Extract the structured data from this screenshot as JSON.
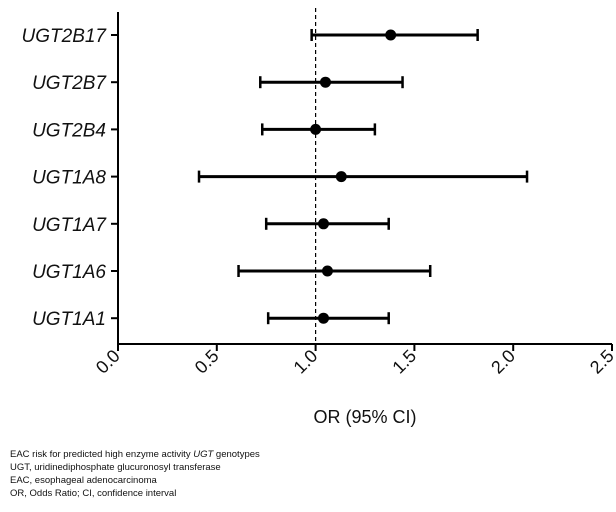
{
  "chart_data": {
    "type": "forest",
    "xlabel": "OR (95% CI)",
    "xlim": [
      0.0,
      2.5
    ],
    "xticks": [
      "0.0",
      "0.5",
      "1.0",
      "1.5",
      "2.0",
      "2.5"
    ],
    "reference_line": 1.0,
    "rows": [
      {
        "label": "UGT2B17",
        "or": 1.38,
        "low": 0.98,
        "high": 1.82
      },
      {
        "label": "UGT2B7",
        "or": 1.05,
        "low": 0.72,
        "high": 1.44
      },
      {
        "label": "UGT2B4",
        "or": 1.0,
        "low": 0.73,
        "high": 1.3
      },
      {
        "label": "UGT1A8",
        "or": 1.13,
        "low": 0.41,
        "high": 2.07
      },
      {
        "label": "UGT1A7",
        "or": 1.04,
        "low": 0.75,
        "high": 1.37
      },
      {
        "label": "UGT1A6",
        "or": 1.06,
        "low": 0.61,
        "high": 1.58
      },
      {
        "label": "UGT1A1",
        "or": 1.04,
        "low": 0.76,
        "high": 1.37
      }
    ]
  },
  "footnotes": [
    {
      "before": "EAC risk for predicted high enzyme activity ",
      "italic": "UGT",
      "after": " genotypes"
    },
    {
      "before": "UGT, uridinediphosphate glucuronosyl transferase",
      "italic": "",
      "after": ""
    },
    {
      "before": "EAC, esophageal adenocarcinoma",
      "italic": "",
      "after": ""
    },
    {
      "before": "OR, Odds Ratio; CI, confidence interval",
      "italic": "",
      "after": ""
    }
  ]
}
